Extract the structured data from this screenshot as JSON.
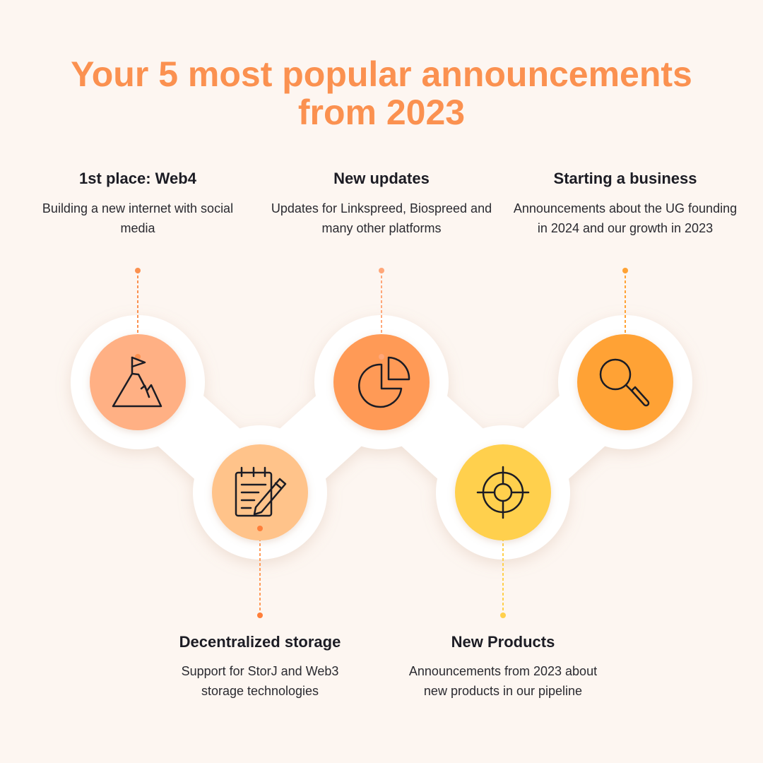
{
  "title": {
    "line1": "Your 5 most popular announcements",
    "line2": "from 2023"
  },
  "items": [
    {
      "heading": "1st place: Web4",
      "description": "Building a new internet with social media",
      "icon": "mountain-flag-icon",
      "color": "#ffb084"
    },
    {
      "heading": "Decentralized storage",
      "description": "Support for StorJ and Web3 storage technologies",
      "icon": "notepad-pencil-icon",
      "color": "#ffc38a"
    },
    {
      "heading": "New updates",
      "description": "Updates for Linkspreed, Biospreed and many other platforms",
      "icon": "pie-chart-icon",
      "color": "#ff9a57"
    },
    {
      "heading": "New Products",
      "description": "Announcements from 2023 about new products in our pipeline",
      "icon": "crosshair-target-icon",
      "color": "#ffd04d"
    },
    {
      "heading": "Starting a business",
      "description": "Announcements about the UG founding in 2024 and our growth in 2023",
      "icon": "magnifier-icon",
      "color": "#ffa234"
    }
  ],
  "colors": {
    "background": "#fdf6f1",
    "title": "#fb9150",
    "text": "#1c1c24",
    "track": "#ffffff"
  }
}
